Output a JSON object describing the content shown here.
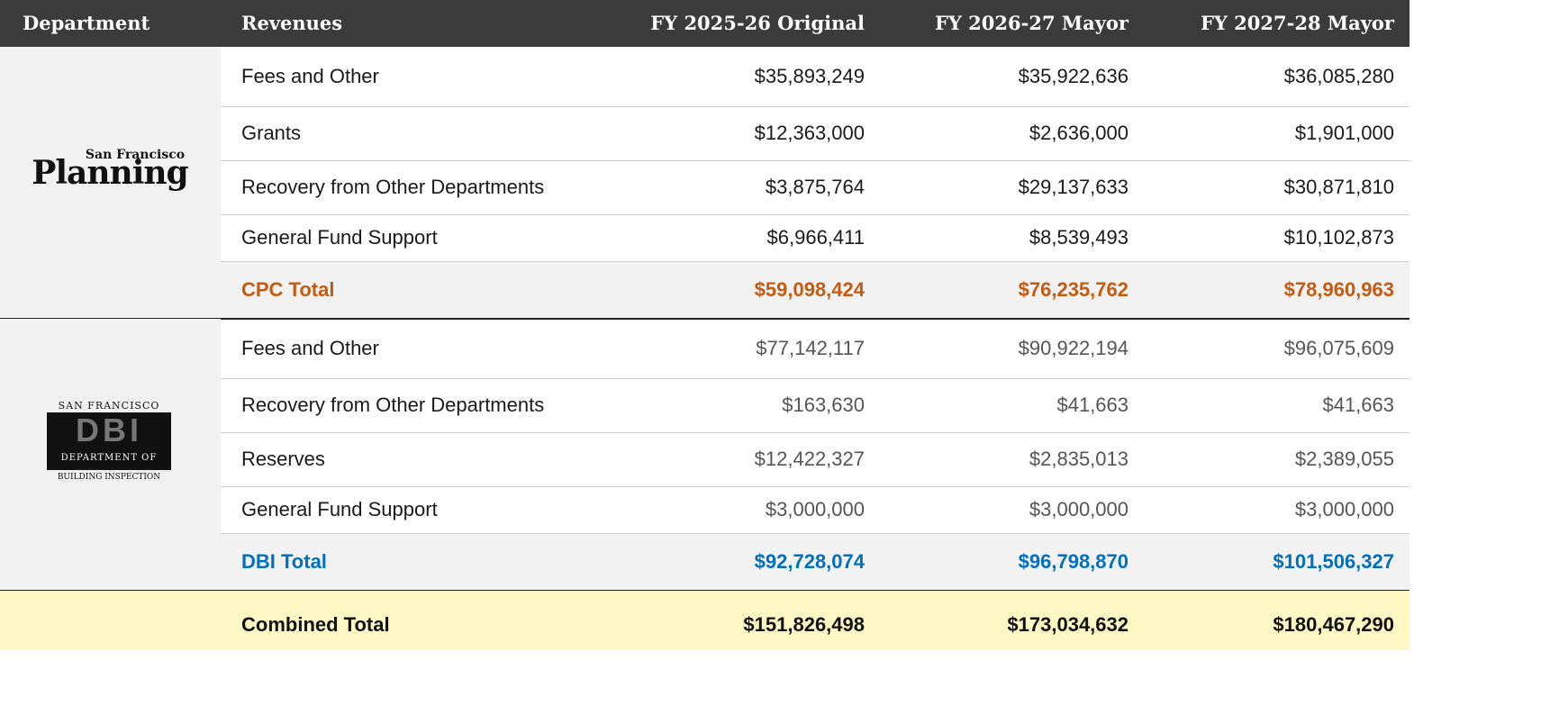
{
  "table": {
    "headers": [
      "Department",
      "Revenues",
      "FY 2025-26 Original",
      "FY 2026-27 Mayor",
      "FY 2027-28 Mayor"
    ],
    "sections": [
      {
        "logo": [
          "San Francisco",
          "Planning"
        ],
        "rows": [
          [
            "Fees and Other",
            "$35,893,249",
            "$35,922,636",
            "$36,085,280"
          ],
          [
            "Grants",
            "$12,363,000",
            "$2,636,000",
            "$1,901,000"
          ],
          [
            "Recovery from Other Departments",
            "$3,875,764",
            "$29,137,633",
            "$30,871,810"
          ],
          [
            "General Fund Support",
            "$6,966,411",
            "$8,539,493",
            "$10,102,873"
          ]
        ],
        "total": [
          "CPC Total",
          "$59,098,424",
          "$76,235,762",
          "$78,960,963"
        ]
      },
      {
        "logo": [
          "SAN FRANCISCO",
          "DBI",
          "DEPARTMENT OF",
          "BUILDING INSPECTION"
        ],
        "rows": [
          [
            "Fees and Other",
            "$77,142,117",
            "$90,922,194",
            "$96,075,609"
          ],
          [
            "Recovery from Other Departments",
            "$163,630",
            "$41,663",
            "$41,663"
          ],
          [
            "Reserves",
            "$12,422,327",
            "$2,835,013",
            "$2,389,055"
          ],
          [
            "General Fund Support",
            "$3,000,000",
            "$3,000,000",
            "$3,000,000"
          ]
        ],
        "total": [
          "DBI Total",
          "$92,728,074",
          "$96,798,870",
          "$101,506,327"
        ]
      }
    ],
    "combined": [
      "Combined Total",
      "$151,826,498",
      "$173,034,632",
      "$180,467,290"
    ]
  }
}
